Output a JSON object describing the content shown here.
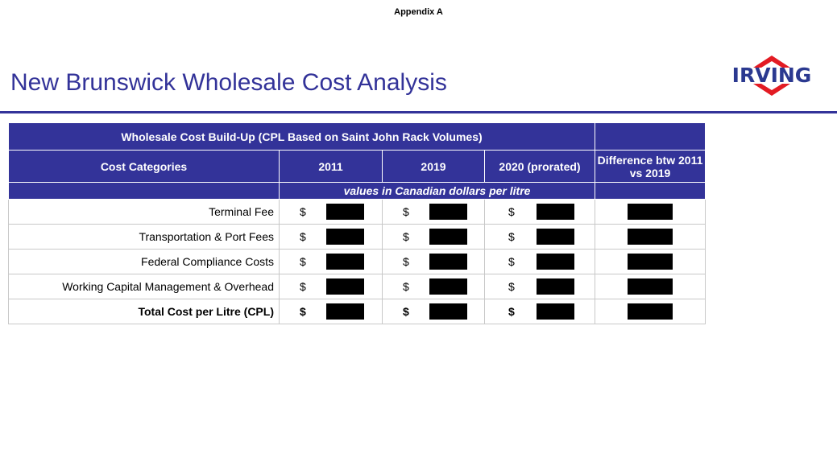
{
  "header": {
    "appendix": "Appendix A",
    "title": "New Brunswick Wholesale Cost Analysis",
    "logo": "IRVING"
  },
  "table": {
    "title": "Wholesale Cost Build-Up (CPL Based on Saint John Rack Volumes)",
    "columns": [
      "Cost Categories",
      "2011",
      "2019",
      "2020 (prorated)",
      "Difference btw 2011 vs 2019"
    ],
    "units": "values in Canadian dollars per litre",
    "rows": [
      {
        "label": "Terminal Fee",
        "cells": [
          "$",
          "$",
          "$"
        ]
      },
      {
        "label": "Transportation & Port Fees",
        "cells": [
          "$",
          "$",
          "$"
        ]
      },
      {
        "label": "Federal Compliance Costs",
        "cells": [
          "$",
          "$",
          "$"
        ]
      },
      {
        "label": "Working Capital Management & Overhead",
        "cells": [
          "$",
          "$",
          "$"
        ]
      },
      {
        "label": "Total Cost per Litre (CPL)",
        "cells": [
          "$",
          "$",
          "$"
        ],
        "bold": true
      }
    ]
  }
}
